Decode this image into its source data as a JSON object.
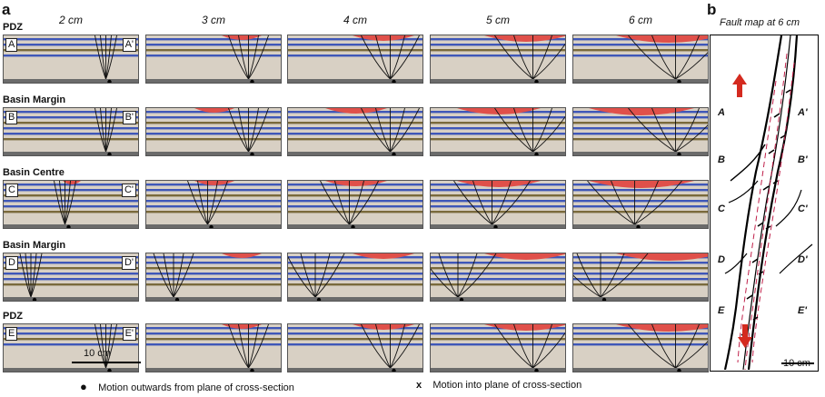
{
  "panel_a": "a",
  "panel_b": "b",
  "columns": [
    "2 cm",
    "3 cm",
    "4 cm",
    "5 cm",
    "6 cm"
  ],
  "rows": [
    {
      "label": "PDZ",
      "left": "A",
      "right": "A'"
    },
    {
      "label": "Basin Margin",
      "left": "B",
      "right": "B'"
    },
    {
      "label": "Basin Centre",
      "left": "C",
      "right": "C'"
    },
    {
      "label": "Basin Margin",
      "left": "D",
      "right": "D'"
    },
    {
      "label": "PDZ",
      "left": "E",
      "right": "E'"
    }
  ],
  "scale_bar": "10 cm",
  "map": {
    "title": "Fault map at 6 cm",
    "labels_left": [
      "A",
      "B",
      "C",
      "D",
      "E"
    ],
    "labels_right": [
      "A'",
      "B'",
      "C'",
      "D'",
      "E'"
    ],
    "scale": "10 cm"
  },
  "legend": {
    "dot_symbol": "●",
    "dot_text": "Motion outwards from plane of cross-section",
    "x_symbol": "x",
    "x_text": "Motion into plane of cross-section"
  },
  "colors": {
    "blue_layer": "#3f57b8",
    "red_fill": "#e0504a",
    "sand": "#d8d0c4",
    "arrow": "#d42a1f"
  }
}
